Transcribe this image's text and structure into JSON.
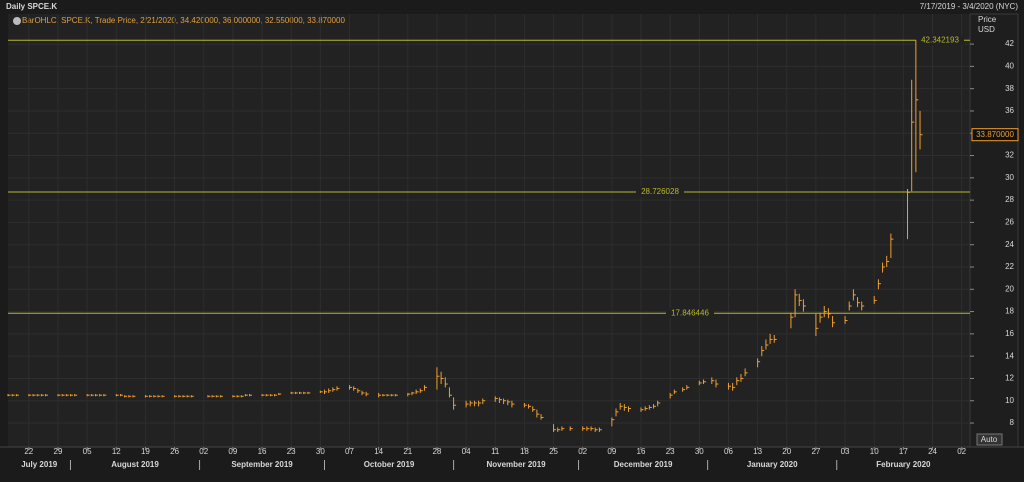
{
  "chart_data": {
    "type": "ohlc",
    "title": "Daily SPCE.K",
    "range_text": "7/17/2019 - 3/4/2020 (NYC)",
    "legend_text": "BarOHLC, SPCE.K, Trade Price, 2/21/2020, 34.420000, 36.000000, 32.550000, 33.870000",
    "y_axis_label": "Price",
    "y_axis_unit": "USD",
    "button": "Auto",
    "color": "#f0a030",
    "level_color": "#b8b82a",
    "grid": true,
    "xlim": [
      "2019-07-17",
      "2020-03-04"
    ],
    "ylim": [
      5.85,
      44.7
    ],
    "yticks": [
      8,
      10,
      12,
      14,
      16,
      18,
      20,
      22,
      24,
      26,
      28,
      30,
      32,
      34,
      36,
      38,
      40,
      42
    ],
    "xticks": [
      {
        "value": "2019-07-22",
        "label": "22"
      },
      {
        "value": "2019-07-29",
        "label": "29"
      },
      {
        "value": "2019-08-05",
        "label": "05"
      },
      {
        "value": "2019-08-12",
        "label": "12"
      },
      {
        "value": "2019-08-19",
        "label": "19"
      },
      {
        "value": "2019-08-26",
        "label": "26"
      },
      {
        "value": "2019-09-02",
        "label": "02"
      },
      {
        "value": "2019-09-09",
        "label": "09"
      },
      {
        "value": "2019-09-16",
        "label": "16"
      },
      {
        "value": "2019-09-23",
        "label": "23"
      },
      {
        "value": "2019-09-30",
        "label": "30"
      },
      {
        "value": "2019-10-07",
        "label": "07"
      },
      {
        "value": "2019-10-14",
        "label": "14"
      },
      {
        "value": "2019-10-21",
        "label": "21"
      },
      {
        "value": "2019-10-28",
        "label": "28"
      },
      {
        "value": "2019-11-04",
        "label": "04"
      },
      {
        "value": "2019-11-11",
        "label": "11"
      },
      {
        "value": "2019-11-18",
        "label": "18"
      },
      {
        "value": "2019-11-25",
        "label": "25"
      },
      {
        "value": "2019-12-02",
        "label": "02"
      },
      {
        "value": "2019-12-09",
        "label": "09"
      },
      {
        "value": "2019-12-16",
        "label": "16"
      },
      {
        "value": "2019-12-23",
        "label": "23"
      },
      {
        "value": "2019-12-30",
        "label": "30"
      },
      {
        "value": "2020-01-06",
        "label": "06"
      },
      {
        "value": "2020-01-13",
        "label": "13"
      },
      {
        "value": "2020-01-20",
        "label": "20"
      },
      {
        "value": "2020-01-27",
        "label": "27"
      },
      {
        "value": "2020-02-03",
        "label": "03"
      },
      {
        "value": "2020-02-10",
        "label": "10"
      },
      {
        "value": "2020-02-17",
        "label": "17"
      },
      {
        "value": "2020-02-24",
        "label": "24"
      },
      {
        "value": "2020-03-02",
        "label": "02"
      }
    ],
    "months": [
      {
        "value": "2019-07",
        "label": "July 2019"
      },
      {
        "value": "2019-08",
        "label": "August 2019"
      },
      {
        "value": "2019-09",
        "label": "September 2019"
      },
      {
        "value": "2019-10",
        "label": "October 2019"
      },
      {
        "value": "2019-11",
        "label": "November 2019"
      },
      {
        "value": "2019-12",
        "label": "December 2019"
      },
      {
        "value": "2020-01",
        "label": "January 2020"
      },
      {
        "value": "2020-02",
        "label": "February 2020"
      }
    ],
    "levels": [
      42.342193,
      28.726028,
      17.846446
    ],
    "last_price": {
      "value": 33.87,
      "label": "33.870000"
    },
    "x": [
      "2019-07-17",
      "2019-07-18",
      "2019-07-19",
      "2019-07-22",
      "2019-07-23",
      "2019-07-24",
      "2019-07-25",
      "2019-07-26",
      "2019-07-29",
      "2019-07-30",
      "2019-07-31",
      "2019-08-01",
      "2019-08-02",
      "2019-08-05",
      "2019-08-06",
      "2019-08-07",
      "2019-08-08",
      "2019-08-09",
      "2019-08-12",
      "2019-08-13",
      "2019-08-14",
      "2019-08-15",
      "2019-08-16",
      "2019-08-19",
      "2019-08-20",
      "2019-08-21",
      "2019-08-22",
      "2019-08-23",
      "2019-08-26",
      "2019-08-27",
      "2019-08-28",
      "2019-08-29",
      "2019-08-30",
      "2019-09-03",
      "2019-09-04",
      "2019-09-05",
      "2019-09-06",
      "2019-09-09",
      "2019-09-10",
      "2019-09-11",
      "2019-09-12",
      "2019-09-13",
      "2019-09-16",
      "2019-09-17",
      "2019-09-18",
      "2019-09-19",
      "2019-09-20",
      "2019-09-23",
      "2019-09-24",
      "2019-09-25",
      "2019-09-26",
      "2019-09-27",
      "2019-09-30",
      "2019-10-01",
      "2019-10-02",
      "2019-10-03",
      "2019-10-04",
      "2019-10-07",
      "2019-10-08",
      "2019-10-09",
      "2019-10-10",
      "2019-10-11",
      "2019-10-14",
      "2019-10-15",
      "2019-10-16",
      "2019-10-17",
      "2019-10-18",
      "2019-10-21",
      "2019-10-22",
      "2019-10-23",
      "2019-10-24",
      "2019-10-25",
      "2019-10-28",
      "2019-10-29",
      "2019-10-30",
      "2019-10-31",
      "2019-11-01",
      "2019-11-04",
      "2019-11-05",
      "2019-11-06",
      "2019-11-07",
      "2019-11-08",
      "2019-11-11",
      "2019-11-12",
      "2019-11-13",
      "2019-11-14",
      "2019-11-15",
      "2019-11-18",
      "2019-11-19",
      "2019-11-20",
      "2019-11-21",
      "2019-11-22",
      "2019-11-25",
      "2019-11-26",
      "2019-11-27",
      "2019-11-29",
      "2019-12-02",
      "2019-12-03",
      "2019-12-04",
      "2019-12-05",
      "2019-12-06",
      "2019-12-09",
      "2019-12-10",
      "2019-12-11",
      "2019-12-12",
      "2019-12-13",
      "2019-12-16",
      "2019-12-17",
      "2019-12-18",
      "2019-12-19",
      "2019-12-20",
      "2019-12-23",
      "2019-12-24",
      "2019-12-26",
      "2019-12-27",
      "2019-12-30",
      "2019-12-31",
      "2020-01-02",
      "2020-01-03",
      "2020-01-06",
      "2020-01-07",
      "2020-01-08",
      "2020-01-09",
      "2020-01-10",
      "2020-01-13",
      "2020-01-14",
      "2020-01-15",
      "2020-01-16",
      "2020-01-17",
      "2020-01-21",
      "2020-01-22",
      "2020-01-23",
      "2020-01-24",
      "2020-01-27",
      "2020-01-28",
      "2020-01-29",
      "2020-01-30",
      "2020-01-31",
      "2020-02-03",
      "2020-02-04",
      "2020-02-05",
      "2020-02-06",
      "2020-02-07",
      "2020-02-10",
      "2020-02-11",
      "2020-02-12",
      "2020-02-13",
      "2020-02-14",
      "2020-02-18",
      "2020-02-19",
      "2020-02-20",
      "2020-02-21"
    ],
    "high": [
      10.6,
      10.6,
      10.6,
      10.6,
      10.6,
      10.6,
      10.6,
      10.6,
      10.6,
      10.6,
      10.6,
      10.6,
      10.6,
      10.6,
      10.6,
      10.6,
      10.6,
      10.6,
      10.6,
      10.6,
      10.5,
      10.5,
      10.5,
      10.5,
      10.5,
      10.5,
      10.5,
      10.5,
      10.5,
      10.5,
      10.5,
      10.5,
      10.5,
      10.5,
      10.5,
      10.5,
      10.5,
      10.5,
      10.5,
      10.5,
      10.6,
      10.6,
      10.6,
      10.6,
      10.6,
      10.6,
      10.7,
      10.8,
      10.8,
      10.8,
      10.8,
      10.8,
      10.9,
      11.0,
      11.1,
      11.2,
      11.3,
      11.4,
      11.3,
      11.1,
      10.9,
      10.8,
      10.7,
      10.6,
      10.6,
      10.6,
      10.6,
      10.7,
      10.8,
      11.0,
      11.1,
      11.4,
      13.0,
      12.6,
      12.1,
      11.2,
      10.3,
      10.0,
      10.0,
      10.0,
      10.0,
      10.2,
      10.4,
      10.3,
      10.2,
      10.1,
      10.0,
      9.8,
      9.7,
      9.5,
      9.2,
      8.8,
      7.9,
      7.6,
      7.7,
      7.7,
      7.7,
      7.7,
      7.7,
      7.6,
      7.6,
      8.5,
      9.3,
      9.8,
      9.7,
      9.5,
      9.4,
      9.5,
      9.6,
      9.7,
      10.0,
      10.7,
      11.0,
      11.2,
      11.4,
      11.8,
      11.9,
      12.1,
      11.9,
      11.6,
      11.6,
      12.1,
      12.4,
      12.9,
      13.8,
      14.9,
      15.5,
      16.0,
      15.9,
      17.9,
      20.0,
      19.6,
      19.1,
      17.8,
      17.9,
      18.5,
      18.3,
      17.6,
      17.6,
      18.9,
      20.0,
      19.3,
      18.9,
      19.4,
      20.9,
      22.4,
      23.0,
      25.0,
      29.0,
      38.8,
      42.342193,
      36.0
    ],
    "low": [
      10.4,
      10.4,
      10.4,
      10.4,
      10.4,
      10.4,
      10.4,
      10.4,
      10.4,
      10.4,
      10.4,
      10.4,
      10.4,
      10.4,
      10.4,
      10.4,
      10.4,
      10.4,
      10.4,
      10.4,
      10.3,
      10.3,
      10.3,
      10.3,
      10.3,
      10.3,
      10.3,
      10.3,
      10.3,
      10.3,
      10.3,
      10.3,
      10.3,
      10.3,
      10.3,
      10.3,
      10.3,
      10.3,
      10.3,
      10.3,
      10.4,
      10.4,
      10.4,
      10.4,
      10.4,
      10.4,
      10.5,
      10.6,
      10.6,
      10.6,
      10.6,
      10.6,
      10.7,
      10.6,
      10.7,
      10.8,
      10.9,
      11.0,
      10.9,
      10.7,
      10.5,
      10.4,
      10.3,
      10.4,
      10.4,
      10.4,
      10.4,
      10.4,
      10.5,
      10.6,
      10.7,
      10.9,
      11.0,
      11.5,
      11.2,
      10.3,
      9.2,
      9.4,
      9.5,
      9.5,
      9.5,
      9.7,
      9.9,
      9.8,
      9.7,
      9.6,
      9.4,
      9.4,
      9.3,
      9.0,
      8.5,
      8.3,
      7.2,
      7.2,
      7.3,
      7.3,
      7.3,
      7.3,
      7.3,
      7.2,
      7.2,
      7.7,
      8.6,
      9.2,
      9.1,
      9.0,
      9.0,
      9.1,
      9.2,
      9.3,
      9.5,
      10.2,
      10.6,
      10.8,
      11.0,
      11.4,
      11.5,
      11.5,
      11.2,
      11.0,
      10.9,
      11.4,
      11.7,
      12.2,
      13.0,
      14.0,
      14.6,
      15.1,
      15.2,
      16.5,
      17.5,
      18.5,
      18.0,
      15.8,
      17.0,
      17.5,
      17.4,
      16.6,
      16.9,
      18.1,
      19.0,
      18.4,
      18.1,
      18.7,
      20.0,
      21.5,
      22.0,
      22.8,
      24.5,
      28.8,
      30.5,
      32.55
    ],
    "close": [
      10.5,
      10.5,
      10.5,
      10.5,
      10.5,
      10.5,
      10.5,
      10.5,
      10.5,
      10.5,
      10.5,
      10.5,
      10.5,
      10.5,
      10.5,
      10.5,
      10.5,
      10.5,
      10.5,
      10.5,
      10.4,
      10.4,
      10.4,
      10.4,
      10.4,
      10.4,
      10.4,
      10.4,
      10.4,
      10.4,
      10.4,
      10.4,
      10.4,
      10.4,
      10.4,
      10.4,
      10.4,
      10.4,
      10.4,
      10.4,
      10.5,
      10.5,
      10.5,
      10.5,
      10.5,
      10.5,
      10.6,
      10.7,
      10.7,
      10.7,
      10.7,
      10.7,
      10.8,
      10.8,
      10.9,
      11.0,
      11.1,
      11.2,
      11.1,
      10.9,
      10.7,
      10.6,
      10.5,
      10.5,
      10.5,
      10.5,
      10.5,
      10.6,
      10.7,
      10.8,
      10.9,
      11.2,
      12.2,
      12.0,
      11.5,
      10.5,
      9.6,
      9.7,
      9.8,
      9.8,
      9.8,
      10.0,
      10.2,
      10.1,
      10.0,
      9.9,
      9.7,
      9.6,
      9.5,
      9.2,
      8.8,
      8.5,
      7.4,
      7.4,
      7.5,
      7.5,
      7.5,
      7.5,
      7.5,
      7.4,
      7.4,
      8.3,
      9.0,
      9.5,
      9.4,
      9.3,
      9.2,
      9.3,
      9.4,
      9.5,
      9.8,
      10.5,
      10.8,
      11.0,
      11.2,
      11.6,
      11.7,
      11.8,
      11.5,
      11.3,
      11.2,
      11.8,
      12.0,
      12.5,
      13.5,
      14.5,
      15.0,
      15.5,
      15.5,
      17.5,
      19.5,
      19.0,
      18.5,
      16.5,
      17.5,
      18.0,
      17.8,
      17.0,
      17.2,
      18.5,
      19.5,
      18.8,
      18.5,
      19.0,
      20.5,
      22.0,
      22.5,
      24.5,
      28.7,
      35.0,
      37.0,
      33.87
    ]
  }
}
